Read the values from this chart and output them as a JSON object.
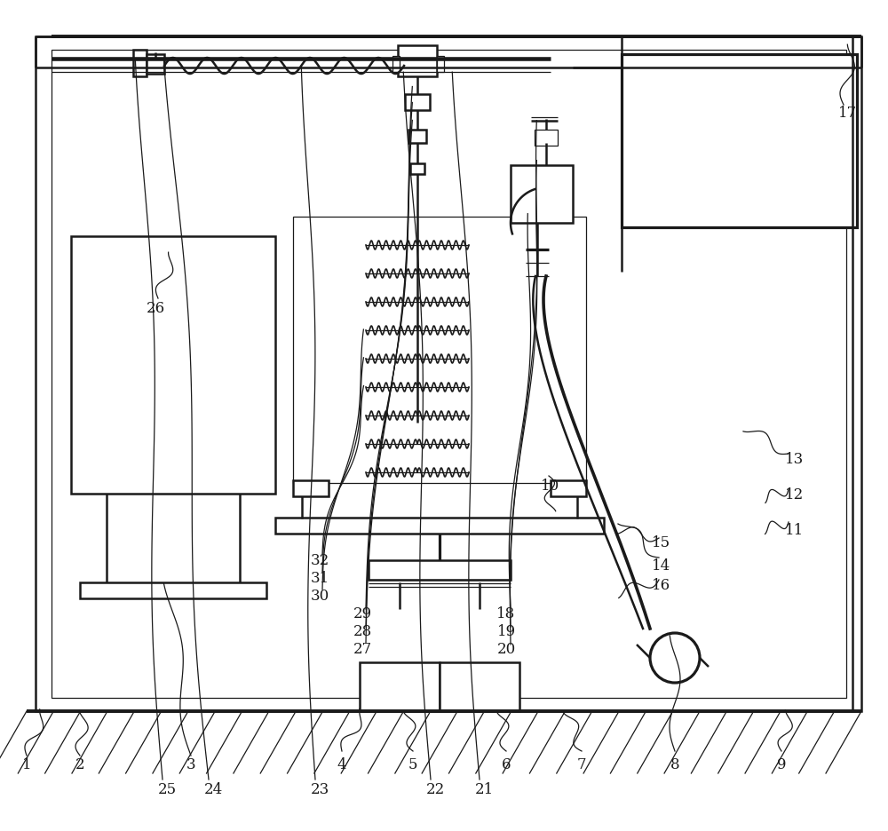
{
  "bg_color": "#ffffff",
  "line_color": "#1a1a1a",
  "lw": 1.8,
  "tlw": 0.9,
  "fs": 12,
  "fig_w": 10.0,
  "fig_h": 9.37
}
